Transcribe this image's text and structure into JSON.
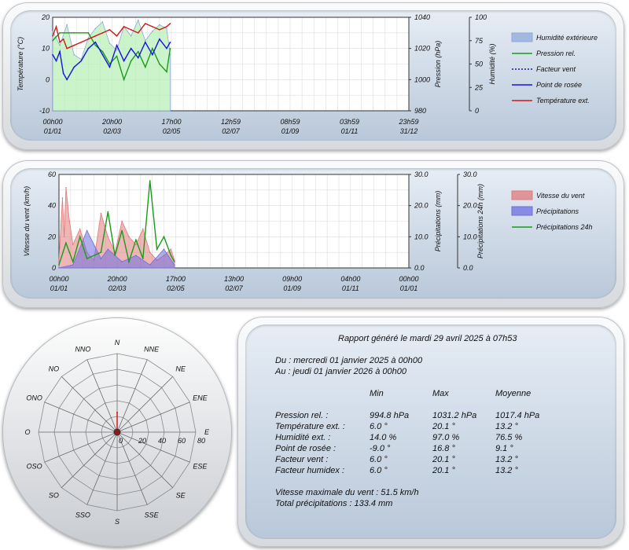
{
  "chart_data": [
    {
      "type": "line",
      "y_left_label": "Température (°C)",
      "y_left_ticks": [
        "20",
        "10",
        "0",
        "-10"
      ],
      "ylim_left": [
        -10,
        20
      ],
      "y_right1_label": "Pression (hPa)",
      "y_right1_ticks": [
        "1040",
        "1020",
        "1000",
        "980"
      ],
      "ylim_right1": [
        980,
        1040
      ],
      "y_right2_label": "Humidité (%)",
      "y_right2_ticks": [
        "100",
        "75",
        "50",
        "25",
        "0"
      ],
      "ylim_right2": [
        0,
        100
      ],
      "x_ticks": [
        {
          "time": "00h00",
          "date": "01/01"
        },
        {
          "time": "20h00",
          "date": "02/03"
        },
        {
          "time": "17h00",
          "date": "02/05"
        },
        {
          "time": "12h59",
          "date": "02/07"
        },
        {
          "time": "08h59",
          "date": "01/09"
        },
        {
          "time": "03h59",
          "date": "01/11"
        },
        {
          "time": "23h59",
          "date": "31/12"
        }
      ],
      "grid": true,
      "legend_position": "right",
      "legend": [
        {
          "name": "Humidité extérieure",
          "color": "#8fa8d8",
          "style": "box"
        },
        {
          "name": "Pression rel.",
          "color": "#1a9a1a",
          "style": "line"
        },
        {
          "name": "Facteur vent",
          "color": "#1a1aa0",
          "style": "dotted"
        },
        {
          "name": "Point de rosée",
          "color": "#1414e0",
          "style": "line"
        },
        {
          "name": "Température ext.",
          "color": "#cc1a1a",
          "style": "line"
        }
      ],
      "series": [
        {
          "name": "Humidité extérieure",
          "axis": "right2",
          "x": [
            0,
            0.02,
            0.04,
            0.06,
            0.08,
            0.1,
            0.12,
            0.14,
            0.16,
            0.18,
            0.2,
            0.22,
            0.24,
            0.26,
            0.28,
            0.3,
            0.32,
            0.33
          ],
          "values": [
            85,
            70,
            92,
            60,
            55,
            78,
            88,
            95,
            72,
            65,
            90,
            80,
            97,
            75,
            85,
            92,
            88,
            60
          ]
        },
        {
          "name": "Pression rel.",
          "axis": "right1",
          "x": [
            0,
            0.02,
            0.06,
            0.1,
            0.12,
            0.14,
            0.16,
            0.18,
            0.2,
            0.22,
            0.24,
            0.26,
            0.28,
            0.3,
            0.32,
            0.33
          ],
          "values": [
            1025,
            1030,
            1030,
            1030,
            1022,
            1018,
            1010,
            1015,
            1000,
            1012,
            1018,
            1008,
            1020,
            1010,
            1005,
            1020
          ]
        },
        {
          "name": "Point de rosée",
          "axis": "left",
          "x": [
            0,
            0.01,
            0.02,
            0.03,
            0.04,
            0.06,
            0.08,
            0.1,
            0.12,
            0.14,
            0.16,
            0.18,
            0.2,
            0.22,
            0.24,
            0.26,
            0.28,
            0.3,
            0.32,
            0.33
          ],
          "values": [
            8,
            6,
            9,
            2,
            0,
            4,
            6,
            10,
            12,
            8,
            4,
            11,
            6,
            10,
            7,
            12,
            8,
            13,
            10,
            12
          ]
        },
        {
          "name": "Température ext.",
          "axis": "left",
          "x": [
            0,
            0.01,
            0.02,
            0.03,
            0.04,
            0.06,
            0.08,
            0.1,
            0.12,
            0.14,
            0.16,
            0.18,
            0.2,
            0.22,
            0.24,
            0.26,
            0.28,
            0.3,
            0.32,
            0.33
          ],
          "values": [
            14,
            17,
            12,
            13,
            10,
            11,
            12,
            13,
            14,
            15,
            16,
            14,
            17,
            16,
            15,
            18,
            17,
            16,
            17,
            18
          ]
        }
      ]
    },
    {
      "type": "area",
      "y_left_label": "Vitesse du vent (km/h)",
      "y_left_ticks": [
        "60",
        "40",
        "20",
        "0"
      ],
      "ylim_left": [
        0,
        60
      ],
      "y_right1_label": "Précipitations (mm)",
      "y_right1_ticks": [
        "30.0",
        "20.0",
        "10.0",
        "0.0"
      ],
      "ylim_right1": [
        0,
        30
      ],
      "y_right2_label": "Précipitations 24h (mm)",
      "y_right2_ticks": [
        "30.0",
        "20.0",
        "10.0",
        "0.0"
      ],
      "ylim_right2": [
        0,
        30
      ],
      "x_ticks": [
        {
          "time": "00h00",
          "date": "01/01"
        },
        {
          "time": "20h00",
          "date": "02/03"
        },
        {
          "time": "17h00",
          "date": "02/05"
        },
        {
          "time": "13h00",
          "date": "02/07"
        },
        {
          "time": "09h00",
          "date": "01/09"
        },
        {
          "time": "04h00",
          "date": "01/11"
        },
        {
          "time": "00h00",
          "date": "01/01"
        }
      ],
      "grid": true,
      "legend_position": "right",
      "legend": [
        {
          "name": "Vitesse du vent",
          "color": "#e07a7a",
          "style": "box"
        },
        {
          "name": "Précipitations",
          "color": "#6e6ee0",
          "style": "box"
        },
        {
          "name": "Précipitations 24h",
          "color": "#1a9a1a",
          "style": "line"
        }
      ],
      "series": [
        {
          "name": "Vitesse du vent",
          "axis": "left",
          "x": [
            0,
            0.01,
            0.015,
            0.02,
            0.03,
            0.04,
            0.06,
            0.08,
            0.1,
            0.12,
            0.14,
            0.16,
            0.18,
            0.2,
            0.22,
            0.24,
            0.26,
            0.28,
            0.3,
            0.32,
            0.33
          ],
          "values": [
            5,
            45,
            20,
            51.5,
            30,
            15,
            25,
            10,
            5,
            35,
            20,
            10,
            30,
            20,
            15,
            25,
            10,
            5,
            8,
            12,
            5
          ]
        },
        {
          "name": "Précipitations",
          "axis": "right1",
          "x": [
            0,
            0.04,
            0.08,
            0.12,
            0.14,
            0.18,
            0.22,
            0.26,
            0.3,
            0.33
          ],
          "values": [
            0,
            1,
            12,
            3,
            6,
            2,
            4,
            1,
            6,
            1
          ]
        },
        {
          "name": "Précipitations 24h",
          "axis": "right2",
          "x": [
            0,
            0.02,
            0.04,
            0.06,
            0.08,
            0.12,
            0.14,
            0.16,
            0.18,
            0.2,
            0.22,
            0.24,
            0.26,
            0.28,
            0.3,
            0.32,
            0.33
          ],
          "values": [
            1,
            8,
            2,
            10,
            3,
            5,
            18,
            4,
            12,
            2,
            9,
            3,
            28,
            6,
            10,
            4,
            2
          ]
        }
      ]
    },
    {
      "type": "radar",
      "directions": [
        "N",
        "NNE",
        "NE",
        "ENE",
        "E",
        "ESE",
        "SE",
        "SSE",
        "S",
        "SSO",
        "SO",
        "OSO",
        "O",
        "ONO",
        "NO",
        "NNO"
      ],
      "r_ticks": [
        "0",
        "20",
        "40",
        "60",
        "80"
      ],
      "rlim": [
        0,
        80
      ],
      "values": [
        20,
        0,
        0,
        0,
        0,
        0,
        0,
        0,
        0,
        0,
        0,
        0,
        0,
        0,
        0,
        0
      ],
      "series_color": "#cc1a1a"
    }
  ],
  "report": {
    "title": "Rapport généré le mardi 29 avril 2025 à 07h53",
    "from": "Du : mercredi 01 janvier 2025 à 00h00",
    "to": "Au : jeudi 01 janvier 2026 à 00h00",
    "headers": [
      "Min",
      "Max",
      "Moyenne"
    ],
    "rows": [
      {
        "label": "Pression rel. :",
        "min": "994.8 hPa",
        "max": "1031.2 hPa",
        "avg": "1017.4 hPa"
      },
      {
        "label": "Température ext. :",
        "min": "6.0 °",
        "max": "20.1 °",
        "avg": "13.2 °"
      },
      {
        "label": "Humidité ext. :",
        "min": "14.0 %",
        "max": "97.0 %",
        "avg": "76.5 %"
      },
      {
        "label": "Point de rosée :",
        "min": "-9.0 °",
        "max": "16.8 °",
        "avg": "9.1 °"
      },
      {
        "label": "Facteur vent :",
        "min": "6.0 °",
        "max": "20.1 °",
        "avg": "13.2 °"
      },
      {
        "label": "Facteur humidex :",
        "min": "6.0 °",
        "max": "20.1 °",
        "avg": "13.2 °"
      }
    ],
    "max_wind": "Vitesse maximale du vent : 51.5 km/h",
    "total_rain": "Total précipitations : 133.4 mm"
  }
}
